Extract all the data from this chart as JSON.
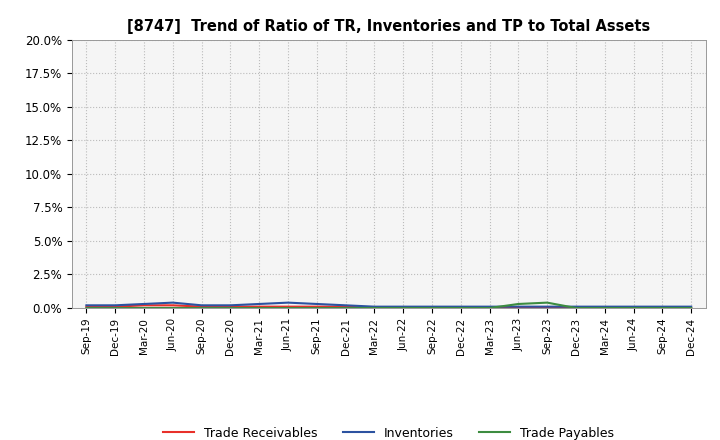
{
  "title": "[8747]  Trend of Ratio of TR, Inventories and TP to Total Assets",
  "x_labels": [
    "Sep-19",
    "Dec-19",
    "Mar-20",
    "Jun-20",
    "Sep-20",
    "Dec-20",
    "Mar-21",
    "Jun-21",
    "Sep-21",
    "Dec-21",
    "Mar-22",
    "Jun-22",
    "Sep-22",
    "Dec-22",
    "Mar-23",
    "Jun-23",
    "Sep-23",
    "Dec-23",
    "Mar-24",
    "Jun-24",
    "Sep-24",
    "Dec-24"
  ],
  "trade_receivables": [
    0.001,
    0.001,
    0.002,
    0.002,
    0.001,
    0.001,
    0.001,
    0.001,
    0.001,
    0.001,
    0.0,
    0.0,
    0.0,
    0.0,
    0.0,
    0.0,
    0.0,
    0.0,
    0.0,
    0.0,
    0.0,
    0.0
  ],
  "inventories": [
    0.002,
    0.002,
    0.003,
    0.004,
    0.002,
    0.002,
    0.003,
    0.004,
    0.003,
    0.002,
    0.001,
    0.001,
    0.001,
    0.001,
    0.001,
    0.001,
    0.001,
    0.001,
    0.001,
    0.001,
    0.001,
    0.001
  ],
  "trade_payables": [
    0.0,
    0.0,
    0.0,
    0.0,
    0.0,
    0.0,
    0.0,
    0.0,
    0.0,
    0.0,
    0.0,
    0.0,
    0.0,
    0.0,
    0.0,
    0.003,
    0.004,
    0.0,
    0.0,
    0.0,
    0.0,
    0.0
  ],
  "color_tr": "#e8302a",
  "color_inv": "#2c52a0",
  "color_tp": "#3d8c40",
  "ylim": [
    0.0,
    0.2
  ],
  "yticks": [
    0.0,
    0.025,
    0.05,
    0.075,
    0.1,
    0.125,
    0.15,
    0.175,
    0.2
  ],
  "ytick_labels": [
    "0.0%",
    "2.5%",
    "5.0%",
    "7.5%",
    "10.0%",
    "12.5%",
    "15.0%",
    "17.5%",
    "20.0%"
  ],
  "background_color": "#ffffff",
  "plot_bg_color": "#f5f5f5",
  "grid_color": "#bbbbbb",
  "legend_labels": [
    "Trade Receivables",
    "Inventories",
    "Trade Payables"
  ]
}
